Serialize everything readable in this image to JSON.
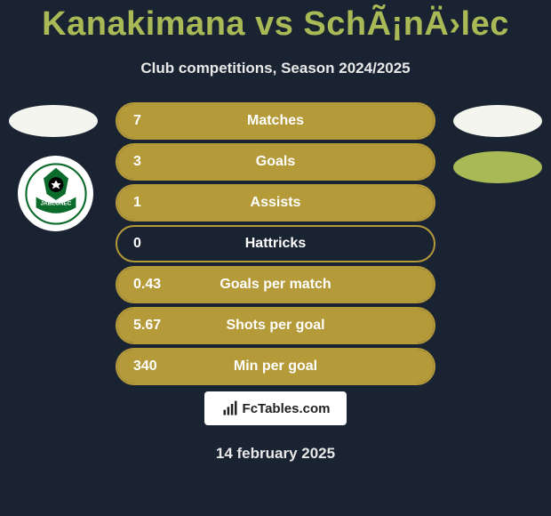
{
  "title": "Kanakimana vs SchÃ¡nÄ›lec",
  "subtitle": "Club competitions, Season 2024/2025",
  "footer_brand": "FcTables.com",
  "footer_date": "14 february 2025",
  "colors": {
    "bg": "#1a2332",
    "accent": "#a8b956",
    "bar_fill": "#b59a3a",
    "bar_border": "#b59a3a",
    "text": "#ffffff",
    "badge_light": "#f5f5f0"
  },
  "club_logo": {
    "primary": "#0b6b2b",
    "secondary": "#000000",
    "bg": "#ffffff",
    "label": "JABLONEC"
  },
  "stats": [
    {
      "label": "Matches",
      "value": "7",
      "fill_pct": 100
    },
    {
      "label": "Goals",
      "value": "3",
      "fill_pct": 100
    },
    {
      "label": "Assists",
      "value": "1",
      "fill_pct": 100
    },
    {
      "label": "Hattricks",
      "value": "0",
      "fill_pct": 0
    },
    {
      "label": "Goals per match",
      "value": "0.43",
      "fill_pct": 100
    },
    {
      "label": "Shots per goal",
      "value": "5.67",
      "fill_pct": 100
    },
    {
      "label": "Min per goal",
      "value": "340",
      "fill_pct": 100
    }
  ]
}
